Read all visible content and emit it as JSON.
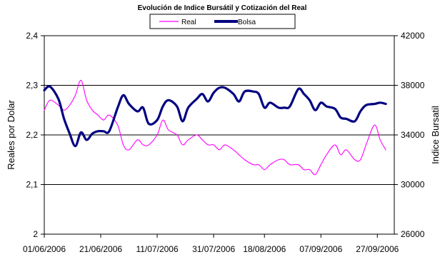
{
  "chart_data": {
    "type": "line",
    "title": "Evolución de Indice Bursátil y Cotización del Real",
    "ylabel": "Reales por Dolar",
    "y2label": "Indice Bursatil",
    "ylim": [
      2,
      2.4
    ],
    "y2lim": [
      26000,
      42000
    ],
    "yticks": [
      "2",
      "2,1",
      "2,2",
      "2,3",
      "2,4"
    ],
    "y2ticks": [
      "26000",
      "30000",
      "34000",
      "38000",
      "42000"
    ],
    "xticks": [
      "01/06/2006",
      "21/06/2006",
      "11/07/2006",
      "31/07/2006",
      "18/08/2006",
      "07/09/2006",
      "27/09/2006"
    ],
    "grid": "horizontal",
    "legend": "top-center",
    "series": [
      {
        "name": "Real",
        "axis": "left",
        "color": "#ff00ff",
        "dates": [
          "2006-06-01",
          "2006-06-03",
          "2006-06-06",
          "2006-06-08",
          "2006-06-10",
          "2006-06-12",
          "2006-06-14",
          "2006-06-16",
          "2006-06-18",
          "2006-06-20",
          "2006-06-22",
          "2006-06-24",
          "2006-06-27",
          "2006-06-29",
          "2006-07-01",
          "2006-07-04",
          "2006-07-06",
          "2006-07-08",
          "2006-07-11",
          "2006-07-13",
          "2006-07-15",
          "2006-07-18",
          "2006-07-20",
          "2006-07-22",
          "2006-07-25",
          "2006-07-27",
          "2006-07-29",
          "2006-07-31",
          "2006-08-02",
          "2006-08-04",
          "2006-08-07",
          "2006-08-09",
          "2006-08-11",
          "2006-08-14",
          "2006-08-16",
          "2006-08-18",
          "2006-08-20",
          "2006-08-23",
          "2006-08-25",
          "2006-08-27",
          "2006-08-30",
          "2006-09-01",
          "2006-09-03",
          "2006-09-05",
          "2006-09-07",
          "2006-09-09",
          "2006-09-12",
          "2006-09-14",
          "2006-09-16",
          "2006-09-19",
          "2006-09-21",
          "2006-09-23",
          "2006-09-26",
          "2006-09-28",
          "2006-09-30"
        ],
        "values": [
          2.25,
          2.27,
          2.26,
          2.25,
          2.26,
          2.28,
          2.31,
          2.27,
          2.25,
          2.24,
          2.23,
          2.24,
          2.22,
          2.18,
          2.17,
          2.19,
          2.18,
          2.18,
          2.2,
          2.23,
          2.21,
          2.2,
          2.18,
          2.19,
          2.2,
          2.19,
          2.18,
          2.18,
          2.17,
          2.18,
          2.17,
          2.16,
          2.15,
          2.14,
          2.14,
          2.13,
          2.14,
          2.15,
          2.15,
          2.14,
          2.14,
          2.13,
          2.13,
          2.12,
          2.14,
          2.16,
          2.18,
          2.16,
          2.17,
          2.15,
          2.15,
          2.18,
          2.22,
          2.19,
          2.17
        ]
      },
      {
        "name": "Bolsa",
        "axis": "right",
        "color": "#000080",
        "dates": [
          "2006-06-01",
          "2006-06-03",
          "2006-06-06",
          "2006-06-08",
          "2006-06-10",
          "2006-06-12",
          "2006-06-14",
          "2006-06-16",
          "2006-06-18",
          "2006-06-20",
          "2006-06-22",
          "2006-06-24",
          "2006-06-27",
          "2006-06-29",
          "2006-07-01",
          "2006-07-04",
          "2006-07-06",
          "2006-07-08",
          "2006-07-11",
          "2006-07-13",
          "2006-07-15",
          "2006-07-18",
          "2006-07-20",
          "2006-07-22",
          "2006-07-25",
          "2006-07-27",
          "2006-07-29",
          "2006-07-31",
          "2006-08-02",
          "2006-08-04",
          "2006-08-07",
          "2006-08-09",
          "2006-08-11",
          "2006-08-14",
          "2006-08-16",
          "2006-08-18",
          "2006-08-20",
          "2006-08-23",
          "2006-08-25",
          "2006-08-27",
          "2006-08-30",
          "2006-09-01",
          "2006-09-03",
          "2006-09-05",
          "2006-09-07",
          "2006-09-09",
          "2006-09-12",
          "2006-09-14",
          "2006-09-16",
          "2006-09-19",
          "2006-09-21",
          "2006-09-23",
          "2006-09-26",
          "2006-09-28",
          "2006-09-30"
        ],
        "values": [
          37600,
          37900,
          36900,
          35300,
          34100,
          33100,
          34200,
          33600,
          34100,
          34300,
          34300,
          34300,
          36200,
          37200,
          36500,
          35900,
          36200,
          34900,
          35200,
          36300,
          36800,
          36300,
          35100,
          36200,
          36900,
          37300,
          36700,
          37400,
          37800,
          37800,
          37300,
          36700,
          37500,
          37500,
          37300,
          36200,
          36600,
          36200,
          36200,
          36300,
          37700,
          37300,
          36800,
          36000,
          36600,
          36300,
          36100,
          35400,
          35300,
          35100,
          35900,
          36400,
          36500,
          36600,
          36500
        ]
      }
    ]
  }
}
